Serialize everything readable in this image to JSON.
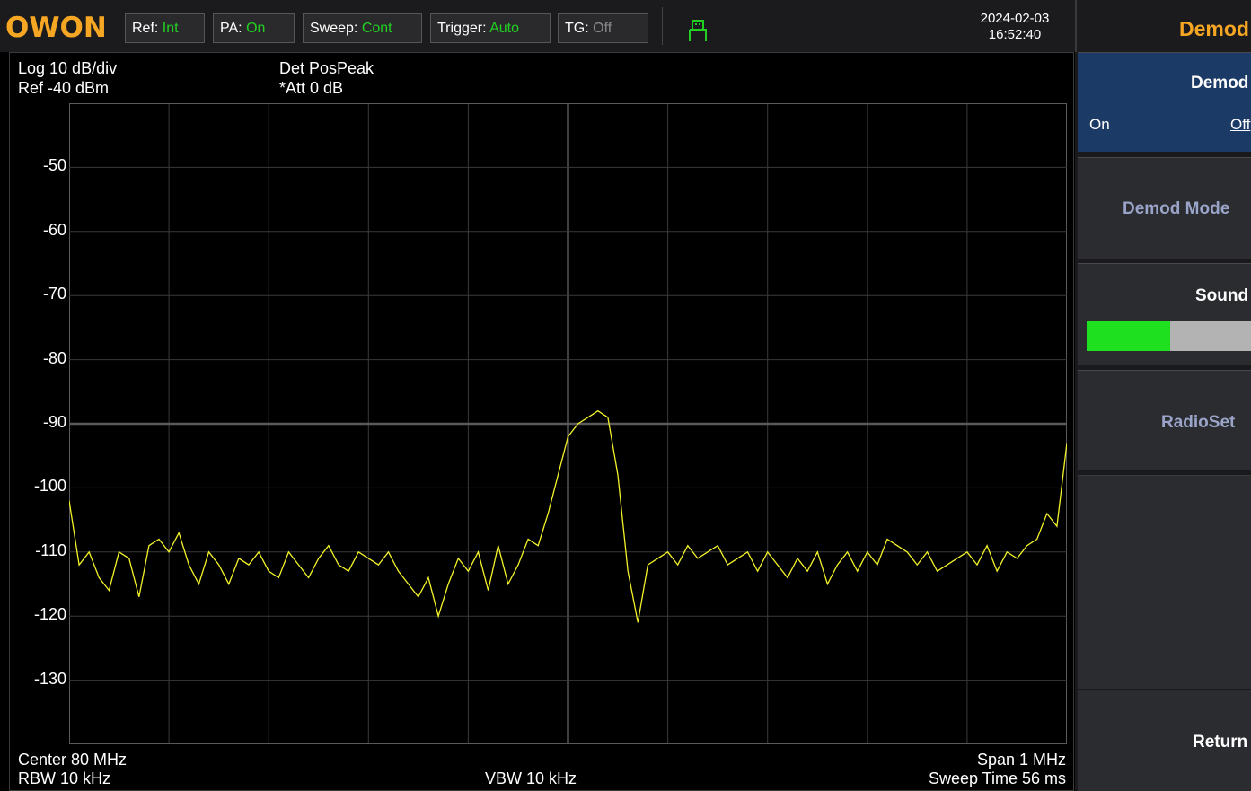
{
  "brand": {
    "logo": "OWON"
  },
  "status": {
    "ref_label": "Ref:",
    "ref_value": "Int",
    "pa_label": "PA:",
    "pa_value": "On",
    "sweep_label": "Sweep:",
    "sweep_value": "Cont",
    "trigger_label": "Trigger:",
    "trigger_value": "Auto",
    "tg_label": "TG:",
    "tg_value": "Off"
  },
  "datetime": {
    "date": "2024-02-03",
    "time": "16:52:40"
  },
  "menu": {
    "title": "Demod"
  },
  "display": {
    "scale": "Log 10 dB/div",
    "ref_level": "Ref -40 dBm",
    "detector": "Det PosPeak",
    "attenuation": "*Att 0 dB",
    "center": "Center 80 MHz",
    "rbw": "RBW 10 kHz",
    "vbw": "VBW 10 kHz",
    "span": "Span 1 MHz",
    "sweep_time": "Sweep Time 56 ms"
  },
  "softkeys": {
    "demod": {
      "title": "Demod",
      "on": "On",
      "off": "Off",
      "selected": "Off"
    },
    "demod_mode": {
      "title": "Demod Mode"
    },
    "sound": {
      "title": "Sound",
      "level": 0.48
    },
    "radioset": {
      "title": "RadioSet"
    },
    "return": {
      "title": "Return"
    }
  },
  "colors": {
    "trace": "#f3f32a",
    "accent": "#f5a623",
    "status_on": "#22d022",
    "sound_bar": "#1fe01f"
  },
  "chart_data": {
    "type": "line",
    "xlabel": "",
    "ylabel": "",
    "xlim": [
      79.5,
      80.5
    ],
    "ylim": [
      -140,
      -40
    ],
    "y_ticks": [
      -50,
      -60,
      -70,
      -80,
      -90,
      -100,
      -110,
      -120,
      -130
    ],
    "grid": true,
    "series": [
      {
        "x": [
          79.5,
          79.51,
          79.52,
          79.53,
          79.54,
          79.55,
          79.56,
          79.57,
          79.58,
          79.59,
          79.6,
          79.61,
          79.62,
          79.63,
          79.64,
          79.65,
          79.66,
          79.67,
          79.68,
          79.69,
          79.7,
          79.71,
          79.72,
          79.73,
          79.74,
          79.75,
          79.76,
          79.77,
          79.78,
          79.79,
          79.8,
          79.81,
          79.82,
          79.83,
          79.84,
          79.85,
          79.86,
          79.87,
          79.88,
          79.89,
          79.9,
          79.91,
          79.92,
          79.93,
          79.94,
          79.95,
          79.96,
          79.97,
          79.98,
          79.99,
          80.0,
          80.01,
          80.02,
          80.03,
          80.04,
          80.05,
          80.06,
          80.07,
          80.08,
          80.09,
          80.1,
          80.11,
          80.12,
          80.13,
          80.14,
          80.15,
          80.16,
          80.17,
          80.18,
          80.19,
          80.2,
          80.21,
          80.22,
          80.23,
          80.24,
          80.25,
          80.26,
          80.27,
          80.28,
          80.29,
          80.3,
          80.31,
          80.32,
          80.33,
          80.34,
          80.35,
          80.36,
          80.37,
          80.38,
          80.39,
          80.4,
          80.41,
          80.42,
          80.43,
          80.44,
          80.45,
          80.46,
          80.47,
          80.48,
          80.49,
          80.5
        ],
        "y": [
          -102,
          -112,
          -110,
          -114,
          -116,
          -110,
          -111,
          -117,
          -109,
          -108,
          -110,
          -107,
          -112,
          -115,
          -110,
          -112,
          -115,
          -111,
          -112,
          -110,
          -113,
          -114,
          -110,
          -112,
          -114,
          -111,
          -109,
          -112,
          -113,
          -110,
          -111,
          -112,
          -110,
          -113,
          -115,
          -117,
          -114,
          -120,
          -115,
          -111,
          -113,
          -110,
          -116,
          -109,
          -115,
          -112,
          -108,
          -109,
          -104,
          -98,
          -92,
          -90,
          -89,
          -88,
          -89,
          -98,
          -113,
          -121,
          -112,
          -111,
          -110,
          -112,
          -109,
          -111,
          -110,
          -109,
          -112,
          -111,
          -110,
          -113,
          -110,
          -112,
          -114,
          -111,
          -113,
          -110,
          -115,
          -112,
          -110,
          -113,
          -110,
          -112,
          -108,
          -109,
          -110,
          -112,
          -110,
          -113,
          -112,
          -111,
          -110,
          -112,
          -109,
          -113,
          -110,
          -111,
          -109,
          -108,
          -104,
          -106,
          -93
        ]
      }
    ]
  }
}
